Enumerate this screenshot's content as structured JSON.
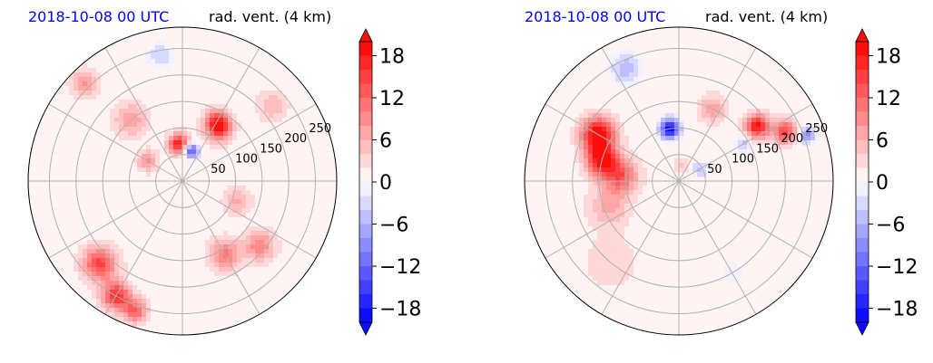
{
  "colors": {
    "date_text": "#0000ff",
    "title_text": "#000000",
    "cmap_low": "#0000ff",
    "cmap_mid": "#ffffff",
    "cmap_high": "#ff0000",
    "grid": "#b0b0b0"
  },
  "chart_data": [
    {
      "type": "heatmap",
      "projection": "polar",
      "date_label": "2018-10-08 00 UTC",
      "title": "rad. vent. (4 km)",
      "radial_ticks": [
        50,
        100,
        150,
        200,
        250
      ],
      "radial_max": 290,
      "angular_gridlines_deg": [
        0,
        30,
        60,
        90,
        120,
        150,
        180,
        210,
        240,
        270,
        300,
        330
      ],
      "colorbar": {
        "ticks": [
          18,
          12,
          6,
          0,
          -6,
          -12,
          -18
        ],
        "tick_labels": [
          "18",
          "12",
          "6",
          "0",
          "−6",
          "−12",
          "−18"
        ],
        "range": [
          -20,
          20
        ],
        "levels": 20,
        "extend": "both"
      },
      "blobs": [
        {
          "azimuth_deg": 95,
          "radius": 70,
          "value": 18,
          "spread": 30
        },
        {
          "azimuth_deg": 75,
          "radius": 60,
          "value": -16,
          "spread": 22
        },
        {
          "azimuth_deg": 55,
          "radius": 120,
          "value": 12,
          "spread": 40
        },
        {
          "azimuth_deg": 60,
          "radius": 130,
          "value": 10,
          "spread": 35
        },
        {
          "azimuth_deg": -60,
          "radius": 160,
          "value": 10,
          "spread": 45
        },
        {
          "azimuth_deg": -40,
          "radius": 190,
          "value": 9,
          "spread": 45
        },
        {
          "azimuth_deg": 150,
          "radius": 75,
          "value": 8,
          "spread": 30
        },
        {
          "azimuth_deg": 130,
          "radius": 150,
          "value": 7,
          "spread": 50
        },
        {
          "azimuth_deg": -135,
          "radius": 220,
          "value": 14,
          "spread": 50
        },
        {
          "azimuth_deg": -120,
          "radius": 250,
          "value": 16,
          "spread": 40
        },
        {
          "azimuth_deg": -110,
          "radius": 260,
          "value": 12,
          "spread": 35
        },
        {
          "azimuth_deg": 135,
          "radius": 260,
          "value": 8,
          "spread": 40
        },
        {
          "azimuth_deg": -20,
          "radius": 110,
          "value": 6,
          "spread": 40
        },
        {
          "azimuth_deg": 40,
          "radius": 220,
          "value": 5,
          "spread": 45
        },
        {
          "azimuth_deg": 100,
          "radius": 240,
          "value": -4,
          "spread": 40
        }
      ]
    },
    {
      "type": "heatmap",
      "projection": "polar",
      "date_label": "2018-10-08 00 UTC",
      "title": "rad. vent. (4 km)",
      "radial_ticks": [
        50,
        100,
        150,
        200,
        250
      ],
      "radial_max": 290,
      "angular_gridlines_deg": [
        0,
        30,
        60,
        90,
        120,
        150,
        180,
        210,
        240,
        270,
        300,
        330
      ],
      "colorbar": {
        "ticks": [
          18,
          12,
          6,
          0,
          -6,
          -12,
          -18
        ],
        "tick_labels": [
          "18",
          "12",
          "6",
          "0",
          "−6",
          "−12",
          "−18"
        ],
        "range": [
          -20,
          20
        ],
        "levels": 20,
        "extend": "both"
      },
      "blobs": [
        {
          "azimuth_deg": 150,
          "radius": 175,
          "value": 20,
          "spread": 50
        },
        {
          "azimuth_deg": 165,
          "radius": 150,
          "value": 18,
          "spread": 45
        },
        {
          "azimuth_deg": 175,
          "radius": 110,
          "value": 12,
          "spread": 50
        },
        {
          "azimuth_deg": 100,
          "radius": 100,
          "value": -20,
          "spread": 28
        },
        {
          "azimuth_deg": 35,
          "radius": 180,
          "value": 18,
          "spread": 35
        },
        {
          "azimuth_deg": 25,
          "radius": 220,
          "value": 14,
          "spread": 35
        },
        {
          "azimuth_deg": 20,
          "radius": 255,
          "value": -10,
          "spread": 25
        },
        {
          "azimuth_deg": 30,
          "radius": 140,
          "value": -6,
          "spread": 22
        },
        {
          "azimuth_deg": 30,
          "radius": 45,
          "value": -5,
          "spread": 25
        },
        {
          "azimuth_deg": 115,
          "radius": 235,
          "value": -6,
          "spread": 45
        },
        {
          "azimuth_deg": 65,
          "radius": 150,
          "value": 7,
          "spread": 40
        },
        {
          "azimuth_deg": 200,
          "radius": 140,
          "value": 6,
          "spread": 60
        },
        {
          "azimuth_deg": -60,
          "radius": 200,
          "value": -2,
          "spread": 60
        },
        {
          "azimuth_deg": -130,
          "radius": 200,
          "value": 3,
          "spread": 80
        },
        {
          "azimuth_deg": 80,
          "radius": 30,
          "value": 4,
          "spread": 20
        }
      ]
    }
  ]
}
